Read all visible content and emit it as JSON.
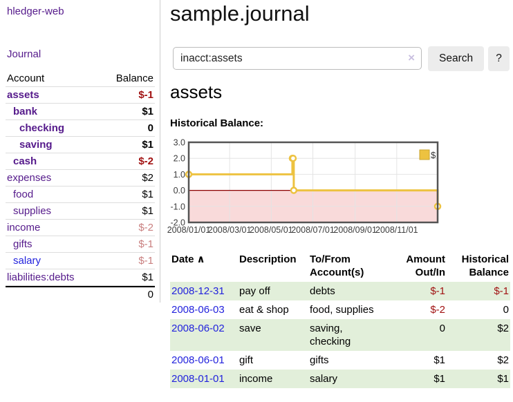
{
  "app": {
    "brand": "hledger-web",
    "nav_journal_label": "Journal"
  },
  "sidebar": {
    "headers": {
      "account": "Account",
      "balance": "Balance"
    },
    "accounts": [
      {
        "name": "assets",
        "indent": 1,
        "bold": true,
        "balance": "$-1",
        "neg": "dark",
        "blue": false
      },
      {
        "name": "bank",
        "indent": 2,
        "bold": true,
        "balance": "$1",
        "neg": "none",
        "blue": false
      },
      {
        "name": "checking",
        "indent": 3,
        "bold": true,
        "balance": "0",
        "neg": "none",
        "blue": false
      },
      {
        "name": "saving",
        "indent": 3,
        "bold": true,
        "balance": "$1",
        "neg": "none",
        "blue": false
      },
      {
        "name": "cash",
        "indent": 2,
        "bold": true,
        "balance": "$-2",
        "neg": "dark",
        "blue": false
      },
      {
        "name": "expenses",
        "indent": 1,
        "bold": false,
        "balance": "$2",
        "neg": "none",
        "blue": false
      },
      {
        "name": "food",
        "indent": 2,
        "bold": false,
        "balance": "$1",
        "neg": "none",
        "blue": false
      },
      {
        "name": "supplies",
        "indent": 2,
        "bold": false,
        "balance": "$1",
        "neg": "none",
        "blue": false
      },
      {
        "name": "income",
        "indent": 1,
        "bold": false,
        "balance": "$-2",
        "neg": "light",
        "blue": false
      },
      {
        "name": "gifts",
        "indent": 2,
        "bold": false,
        "balance": "$-1",
        "neg": "light",
        "blue": false
      },
      {
        "name": "salary",
        "indent": 2,
        "bold": false,
        "balance": "$-1",
        "neg": "light",
        "blue": true
      },
      {
        "name": "liabilities:debts",
        "indent": 1,
        "bold": false,
        "balance": "$1",
        "neg": "none",
        "blue": false
      }
    ],
    "total": "0"
  },
  "header": {
    "title": "sample.journal"
  },
  "search": {
    "value": "inacct:assets",
    "clear_icon": "×",
    "button_label": "Search",
    "help_label": "?"
  },
  "account_page": {
    "heading": "assets",
    "chart_label": "Historical Balance:"
  },
  "chart_data": {
    "type": "line",
    "title": "Historical Balance:",
    "step": true,
    "series": [
      {
        "name": "$",
        "color": "#edc240",
        "points": [
          [
            "2008-01-01",
            1
          ],
          [
            "2008-06-01",
            2
          ],
          [
            "2008-06-02",
            2
          ],
          [
            "2008-06-03",
            0
          ],
          [
            "2008-12-31",
            -1
          ]
        ]
      }
    ],
    "x_ticks": [
      "2008/01/01",
      "2008/03/01",
      "2008/05/01",
      "2008/07/01",
      "2008/09/01",
      "2008/11/01"
    ],
    "y_ticks": [
      3.0,
      2.0,
      1.0,
      0.0,
      -1.0,
      -2.0
    ],
    "ylim": [
      -2,
      3
    ],
    "xlim": [
      "2008-01-01",
      "2008-12-31"
    ],
    "grid": true,
    "legend_position": "top-right",
    "negative_fill": "#f9dada",
    "zero_line_color": "#8b0000",
    "border_color": "#545454",
    "gridline_color": "#e4e4e4"
  },
  "register": {
    "headers": {
      "date": "Date",
      "sort_icon": "∧",
      "description": "Description",
      "tofrom_line1": "To/From",
      "tofrom_line2": "Account(s)",
      "amount_line1": "Amount",
      "amount_line2": "Out/In",
      "balance_line1": "Historical",
      "balance_line2": "Balance"
    },
    "rows": [
      {
        "date": "2008-12-31",
        "description": "pay off",
        "tofrom": "debts",
        "amount": "$-1",
        "balance": "$-1"
      },
      {
        "date": "2008-06-03",
        "description": "eat & shop",
        "tofrom": "food, supplies",
        "amount": "$-2",
        "balance": "0"
      },
      {
        "date": "2008-06-02",
        "description": "save",
        "tofrom": "saving,\nchecking",
        "amount": "0",
        "balance": "$2"
      },
      {
        "date": "2008-06-01",
        "description": "gift",
        "tofrom": "gifts",
        "amount": "$1",
        "balance": "$2"
      },
      {
        "date": "2008-01-01",
        "description": "income",
        "tofrom": "salary",
        "amount": "$1",
        "balance": "$1"
      }
    ]
  },
  "colors": {
    "link_purple": "#551a8b",
    "link_blue": "#2222dd",
    "negative_dark": "#a11212",
    "negative_light": "#c97f7f",
    "row_green": "#e2efda",
    "chart_gold": "#edc240",
    "button_bg": "#ececec"
  }
}
